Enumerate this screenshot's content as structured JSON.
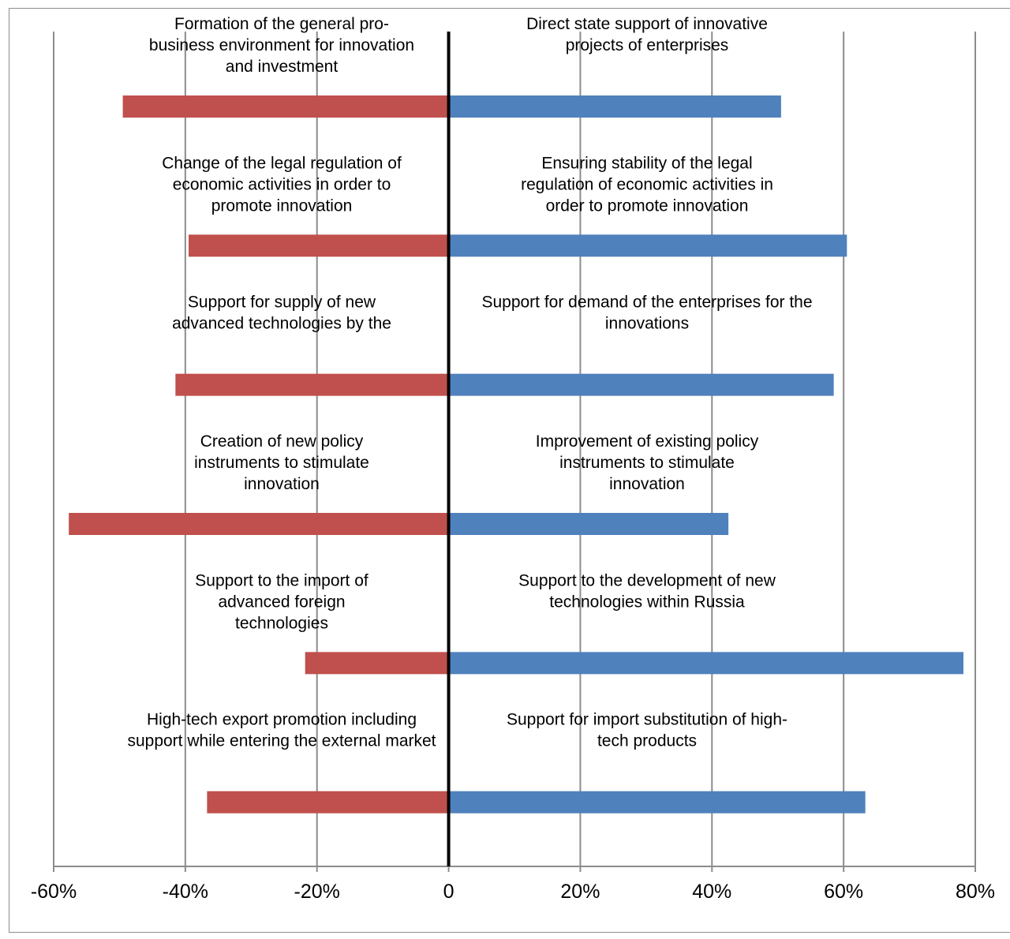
{
  "chart_data": {
    "type": "bar",
    "orientation": "horizontal-diverging",
    "xlim": [
      -60,
      80
    ],
    "x_ticks": [
      "-60%",
      "-40%",
      "-20%",
      "0",
      "20%",
      "40%",
      "60%",
      "80%"
    ],
    "x_tick_values": [
      -60,
      -40,
      -20,
      0,
      20,
      40,
      60,
      80
    ],
    "grid": true,
    "legend": "none",
    "colors": {
      "left": "#c0504d",
      "right": "#4f81bd",
      "grid": "#8c8c8c",
      "axis": "#000000"
    },
    "rows": [
      {
        "left_label": [
          "Formation of the general pro-",
          "business environment for innovation",
          "and investment"
        ],
        "left_value": -49.5,
        "right_label": [
          "Direct state support of innovative",
          "projects of enterprises"
        ],
        "right_value": 50.5
      },
      {
        "left_label": [
          "Change of the legal regulation of",
          "economic activities in order to",
          "promote innovation"
        ],
        "left_value": -39.5,
        "right_label": [
          "Ensuring stability of the legal",
          "regulation of economic activities in",
          "order to promote innovation"
        ],
        "right_value": 60.5
      },
      {
        "left_label": [
          "Support for supply of new",
          "advanced technologies by the"
        ],
        "left_value": -41.5,
        "right_label": [
          "Support for demand of the enterprises for the",
          "innovations"
        ],
        "right_value": 58.5
      },
      {
        "left_label": [
          "Creation of new policy",
          "instruments to stimulate",
          "innovation"
        ],
        "left_value": -57.7,
        "right_label": [
          "Improvement of existing policy",
          "instruments to stimulate",
          "innovation"
        ],
        "right_value": 42.5
      },
      {
        "left_label": [
          "Support to the import of",
          "advanced foreign",
          "technologies"
        ],
        "left_value": -21.8,
        "right_label": [
          "Support to the development of new",
          "technologies within Russia"
        ],
        "right_value": 78.2
      },
      {
        "left_label": [
          "High-tech export promotion including",
          "support while entering the external market"
        ],
        "left_value": -36.7,
        "right_label": [
          "Support for import substitution of high-",
          "tech products"
        ],
        "right_value": 63.3
      }
    ]
  }
}
